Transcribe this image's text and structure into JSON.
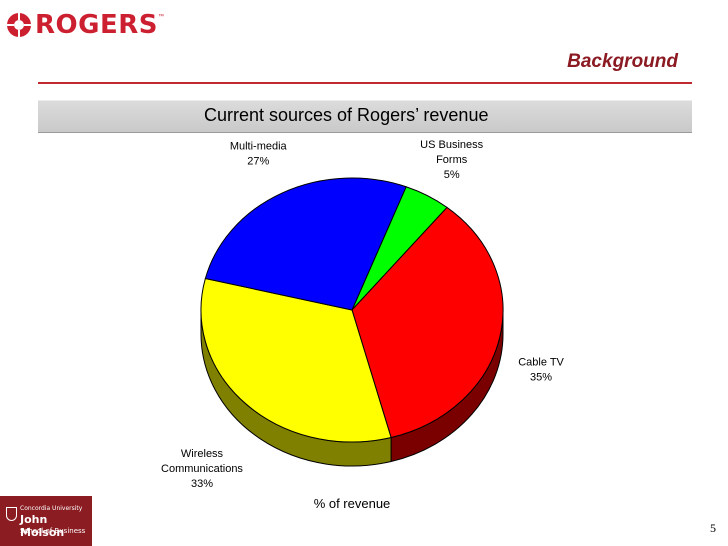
{
  "header": {
    "logo_text": "ROGERS",
    "logo_tm": "™",
    "section_title": "Background"
  },
  "banner": {
    "title": "Current sources of Rogers’ revenue"
  },
  "footer": {
    "school_line1": "Concordia University",
    "school_line2": "John Molson",
    "school_line3": "School of Business",
    "page_number": "5"
  },
  "colors": {
    "brand_red": "#cc1f2f",
    "section_title": "#8b1a22"
  },
  "chart_data": {
    "type": "pie",
    "style": "3d",
    "title": "",
    "axis_title": "% of revenue",
    "unit": "%",
    "slices": [
      {
        "label": [
          "US Business",
          "Forms"
        ],
        "value": 5,
        "display": "5%",
        "color": "#00ff00",
        "side_color": "#00a000"
      },
      {
        "label": [
          "Cable TV"
        ],
        "value": 35,
        "display": "35%",
        "color": "#ff0000",
        "side_color": "#7a0000"
      },
      {
        "label": [
          "Wireless",
          "Communications"
        ],
        "value": 33,
        "display": "33%",
        "color": "#ffff00",
        "side_color": "#808000"
      },
      {
        "label": [
          "Multi-media"
        ],
        "value": 27,
        "display": "27%",
        "color": "#0000ff",
        "side_color": "#00007a"
      }
    ],
    "legend": "none"
  }
}
